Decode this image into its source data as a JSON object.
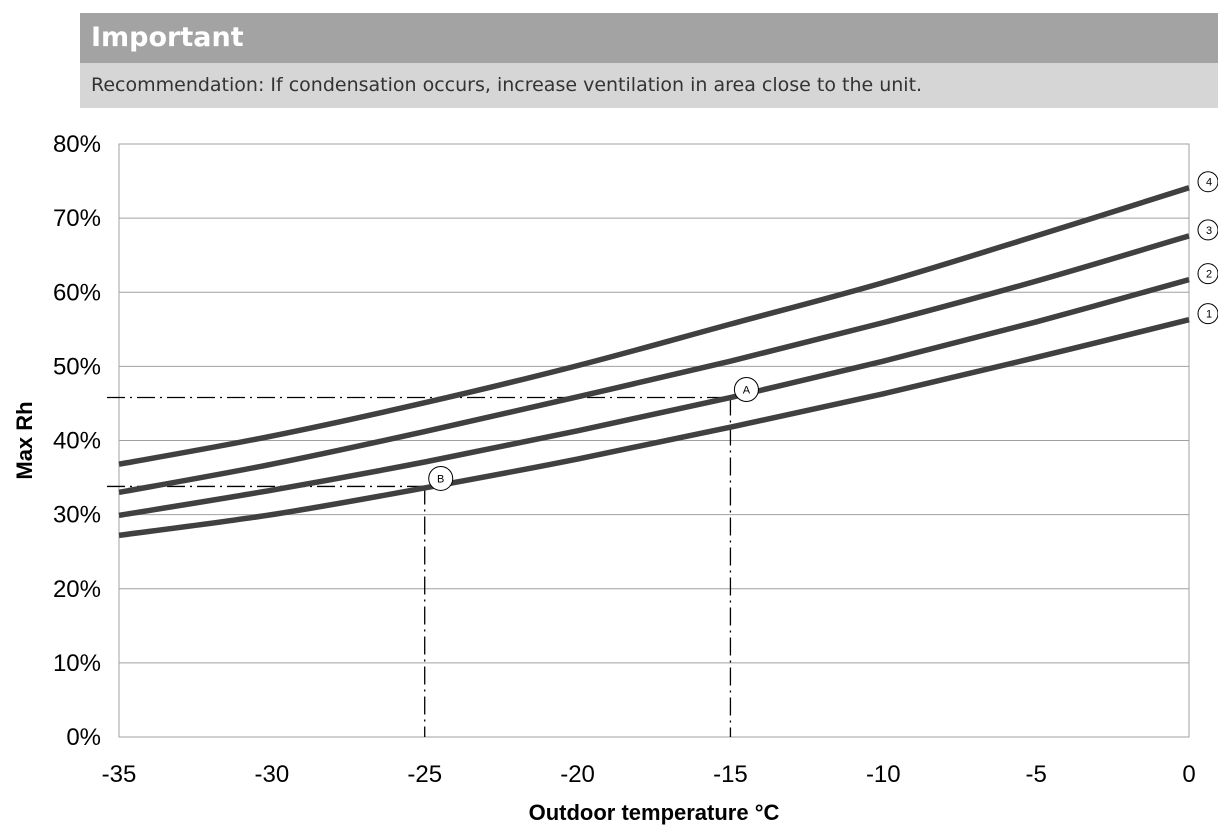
{
  "notice": {
    "title": "Important",
    "text": "Recommendation: If condensation occurs, increase ventilation in area close to the unit."
  },
  "chart_data": {
    "type": "line",
    "title": "",
    "xlabel": "Outdoor temperature °C",
    "ylabel": "Max Rh",
    "xlim": [
      -35,
      0
    ],
    "ylim": [
      0,
      80
    ],
    "x_ticks": [
      -35,
      -30,
      -25,
      -20,
      -15,
      -10,
      -5,
      0
    ],
    "y_ticks": [
      0,
      10,
      20,
      30,
      40,
      50,
      60,
      70,
      80
    ],
    "y_tick_suffix": "%",
    "grid": {
      "horizontal": true,
      "vertical": false
    },
    "line_color": "#404040",
    "series": [
      {
        "label": "1",
        "x": [
          -35,
          -30,
          -25,
          -20,
          -15,
          -10,
          -5,
          0
        ],
        "y": [
          27.2,
          30.0,
          33.6,
          37.5,
          41.8,
          46.3,
          51.2,
          56.3
        ]
      },
      {
        "label": "2",
        "x": [
          -35,
          -30,
          -25,
          -20,
          -15,
          -10,
          -5,
          0
        ],
        "y": [
          29.9,
          33.3,
          37.1,
          41.3,
          45.8,
          50.7,
          56.0,
          61.7
        ]
      },
      {
        "label": "3",
        "x": [
          -35,
          -30,
          -25,
          -20,
          -15,
          -10,
          -5,
          0
        ],
        "y": [
          33.0,
          36.8,
          41.2,
          45.9,
          50.7,
          55.9,
          61.5,
          67.6
        ]
      },
      {
        "label": "4",
        "x": [
          -35,
          -30,
          -25,
          -20,
          -15,
          -10,
          -5,
          0
        ],
        "y": [
          36.8,
          40.6,
          45.1,
          50.1,
          55.7,
          61.3,
          67.6,
          74.1
        ]
      }
    ],
    "annotations": [
      {
        "label": "A",
        "x": -15,
        "y": 45.8
      },
      {
        "label": "B",
        "x": -25,
        "y": 33.8
      }
    ]
  }
}
